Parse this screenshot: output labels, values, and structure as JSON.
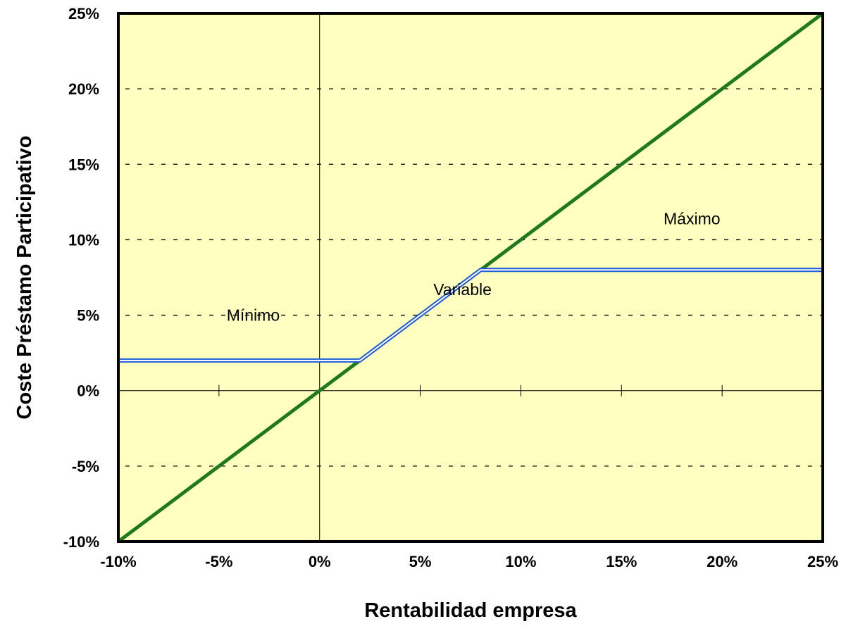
{
  "chart_data": {
    "type": "line",
    "title": "",
    "xlabel": "Rentabilidad empresa",
    "ylabel": "Coste Préstamo Participativo",
    "xlim": [
      -0.1,
      0.25
    ],
    "ylim": [
      -0.1,
      0.25
    ],
    "x_ticks": [
      -0.1,
      -0.05,
      0.0,
      0.05,
      0.1,
      0.15,
      0.2,
      0.25
    ],
    "x_tick_labels": [
      "-10%",
      "-5%",
      "0%",
      "5%",
      "10%",
      "15%",
      "20%",
      "25%"
    ],
    "y_ticks": [
      -0.1,
      -0.05,
      0.0,
      0.05,
      0.1,
      0.15,
      0.2,
      0.25
    ],
    "y_tick_labels": [
      "-10%",
      "-5%",
      "0%",
      "5%",
      "10%",
      "15%",
      "20%",
      "25%"
    ],
    "grid": "horizontal dashed",
    "background_color": "#ffffc0",
    "series": [
      {
        "color": "#1f7a1f",
        "points": [
          [
            -0.1,
            -0.1
          ],
          [
            0.25,
            0.25
          ]
        ]
      },
      {
        "color": "#1e5bd6",
        "points": [
          [
            -0.1,
            0.02
          ],
          [
            0.02,
            0.02
          ],
          [
            0.08,
            0.08
          ],
          [
            0.25,
            0.08
          ]
        ]
      }
    ],
    "annotations": [
      {
        "text": "Mínimo",
        "x": -0.033,
        "y": 0.05
      },
      {
        "text": "Variable",
        "x": 0.071,
        "y": 0.067
      },
      {
        "text": "Máximo",
        "x": 0.185,
        "y": 0.114
      }
    ]
  }
}
